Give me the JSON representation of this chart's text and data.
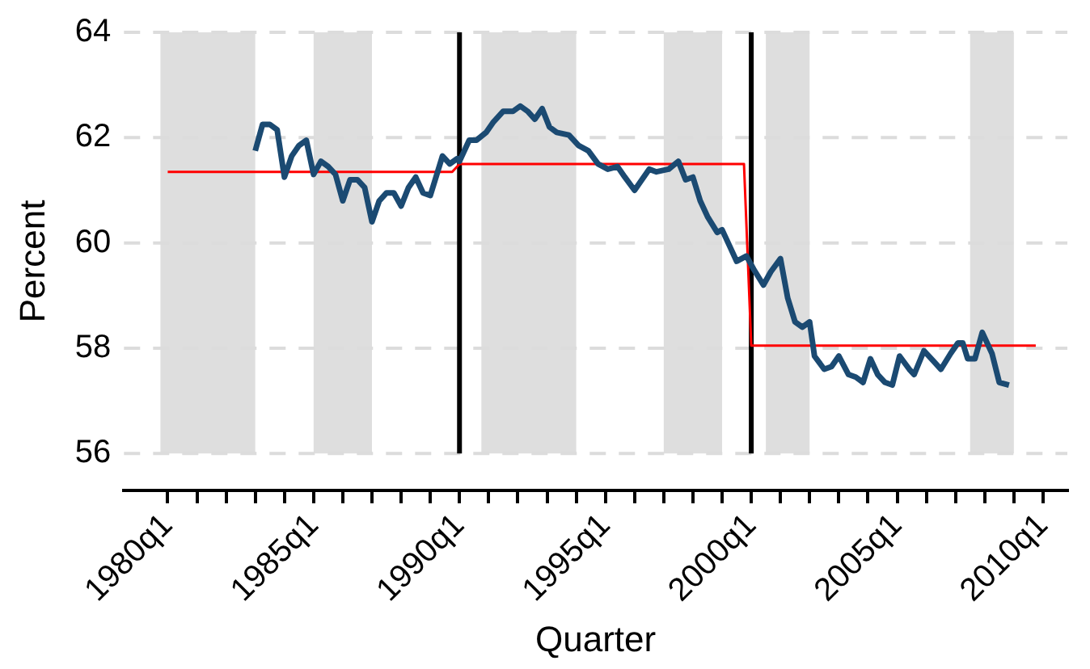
{
  "chart_data": {
    "type": "line",
    "xlabel": "Quarter",
    "ylabel": "Percent",
    "xlim": [
      "1978-07",
      "2010-11"
    ],
    "xticks": [
      {
        "value": "1980-01",
        "label": "1980q1"
      },
      {
        "value": "1981-01",
        "label": null
      },
      {
        "value": "1982-01",
        "label": null
      },
      {
        "value": "1983-01",
        "label": null
      },
      {
        "value": "1984-01",
        "label": null
      },
      {
        "value": "1985-01",
        "label": "1985q1"
      },
      {
        "value": "1986-01",
        "label": null
      },
      {
        "value": "1987-01",
        "label": null
      },
      {
        "value": "1988-01",
        "label": null
      },
      {
        "value": "1989-01",
        "label": null
      },
      {
        "value": "1990-01",
        "label": "1990q1"
      },
      {
        "value": "1991-01",
        "label": null
      },
      {
        "value": "1992-01",
        "label": null
      },
      {
        "value": "1993-01",
        "label": null
      },
      {
        "value": "1994-01",
        "label": null
      },
      {
        "value": "1995-01",
        "label": "1995q1"
      },
      {
        "value": "1996-01",
        "label": null
      },
      {
        "value": "1997-01",
        "label": null
      },
      {
        "value": "1998-01",
        "label": null
      },
      {
        "value": "1999-01",
        "label": null
      },
      {
        "value": "2000-01",
        "label": "2000q1"
      },
      {
        "value": "2001-01",
        "label": null
      },
      {
        "value": "2002-01",
        "label": null
      },
      {
        "value": "2003-01",
        "label": null
      },
      {
        "value": "2004-01",
        "label": null
      },
      {
        "value": "2005-01",
        "label": "2005q1"
      },
      {
        "value": "2006-01",
        "label": null
      },
      {
        "value": "2007-01",
        "label": null
      },
      {
        "value": "2008-01",
        "label": null
      },
      {
        "value": "2009-01",
        "label": null
      },
      {
        "value": "2010-01",
        "label": "2010q1"
      }
    ],
    "ylim": [
      55.3,
      64
    ],
    "yticks": [
      56,
      58,
      60,
      62,
      64
    ],
    "grid": "y",
    "marker": "none",
    "line_style": "solid",
    "bands": [
      {
        "axis": "x",
        "from": "1979-10",
        "to": "1983-01",
        "color": "#dedede"
      },
      {
        "axis": "x",
        "from": "1985-01",
        "to": "1987-01",
        "color": "#dedede"
      },
      {
        "axis": "x",
        "from": "1990-10",
        "to": "1994-01",
        "color": "#dedede"
      },
      {
        "axis": "x",
        "from": "1997-01",
        "to": "1999-01",
        "color": "#dedede"
      },
      {
        "axis": "x",
        "from": "2000-07",
        "to": "2002-01",
        "color": "#dedede"
      },
      {
        "axis": "x",
        "from": "2007-07",
        "to": "2009-01",
        "color": "#dedede"
      }
    ],
    "ref_lines": [
      {
        "axis": "x",
        "value": "1990-01",
        "color": "#000000"
      },
      {
        "axis": "x",
        "value": "2000-01",
        "color": "#000000"
      }
    ],
    "series": [
      {
        "color": "#1b4a72",
        "x": [
          "1983-01",
          "1983-04",
          "1983-07",
          "1983-10",
          "1984-01",
          "1984-04",
          "1984-07",
          "1984-10",
          "1985-01",
          "1985-04",
          "1985-07",
          "1985-10",
          "1986-01",
          "1986-04",
          "1986-07",
          "1986-10",
          "1987-01",
          "1987-04",
          "1987-07",
          "1987-10",
          "1988-01",
          "1988-04",
          "1988-07",
          "1988-10",
          "1989-01",
          "1989-06",
          "1989-09",
          "1989-12",
          "1990-01",
          "1990-05",
          "1990-08",
          "1990-12",
          "1991-03",
          "1991-07",
          "1991-11",
          "1992-02",
          "1992-05",
          "1992-08",
          "1992-11",
          "1993-02",
          "1993-05",
          "1993-10",
          "1994-02",
          "1994-06",
          "1994-10",
          "1995-02",
          "1995-06",
          "1995-09",
          "1996-01",
          "1996-04",
          "1996-07",
          "1996-10",
          "1997-03",
          "1997-07",
          "1997-10",
          "1998-01",
          "1998-04",
          "1998-07",
          "1998-11",
          "1999-01",
          "1999-04",
          "1999-07",
          "1999-11",
          "2000-02",
          "2000-06",
          "2000-09",
          "2001-01",
          "2001-04",
          "2001-07",
          "2001-10",
          "2002-01",
          "2002-03",
          "2002-07",
          "2002-10",
          "2003-01",
          "2003-05",
          "2003-08",
          "2003-11",
          "2004-02",
          "2004-05",
          "2004-08",
          "2004-11",
          "2005-02",
          "2005-06",
          "2005-08",
          "2005-12",
          "2006-04",
          "2006-07",
          "2006-11",
          "2007-02",
          "2007-04",
          "2007-06",
          "2007-09",
          "2007-12",
          "2008-04",
          "2008-07",
          "2008-11"
        ],
        "values": [
          61.75,
          62.25,
          62.25,
          62.15,
          61.25,
          61.65,
          61.85,
          61.95,
          61.3,
          61.55,
          61.45,
          61.3,
          60.8,
          61.2,
          61.2,
          61.05,
          60.4,
          60.8,
          60.95,
          60.95,
          60.7,
          61.05,
          61.25,
          60.95,
          60.9,
          61.65,
          61.5,
          61.6,
          61.55,
          61.95,
          61.95,
          62.1,
          62.3,
          62.5,
          62.5,
          62.6,
          62.5,
          62.35,
          62.55,
          62.2,
          62.1,
          62.05,
          61.85,
          61.75,
          61.5,
          61.4,
          61.45,
          61.25,
          61,
          61.2,
          61.4,
          61.35,
          61.4,
          61.55,
          61.2,
          61.25,
          60.8,
          60.5,
          60.2,
          60.25,
          59.95,
          59.65,
          59.75,
          59.5,
          59.2,
          59.45,
          59.7,
          58.95,
          58.5,
          58.4,
          58.5,
          57.85,
          57.6,
          57.65,
          57.85,
          57.5,
          57.45,
          57.35,
          57.8,
          57.5,
          57.35,
          57.3,
          57.85,
          57.6,
          57.5,
          57.95,
          57.75,
          57.6,
          57.9,
          58.1,
          58.1,
          57.8,
          57.8,
          58.3,
          57.9,
          57.35,
          57.3
        ]
      },
      {
        "color": "#ff0000",
        "x": [
          "1980-01",
          "1989-10",
          "1990-01",
          "1999-10",
          "2000-01",
          "2009-10"
        ],
        "values": [
          61.35,
          61.35,
          61.5,
          61.5,
          58.05,
          58.05
        ]
      }
    ]
  }
}
